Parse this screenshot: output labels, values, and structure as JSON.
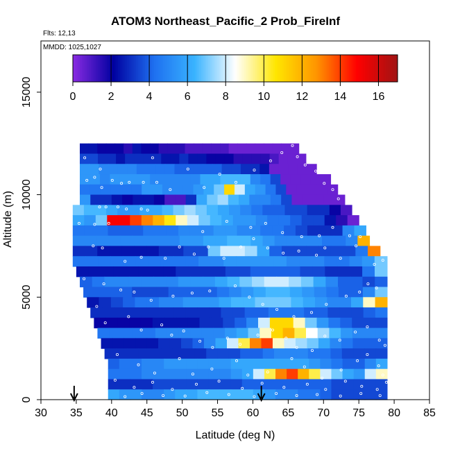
{
  "chart_data": {
    "type": "heatmap",
    "title": "ATOM3 Northeast_Pacific_2 Prob_FireInf",
    "subtitle_flights": "Flts: 12,13",
    "subtitle_dates": "MMDD: 1025,1027",
    "xlabel": "Latitude (deg N)",
    "ylabel": "Altitude (m)",
    "xlim": [
      30,
      85
    ],
    "ylim": [
      0,
      17500
    ],
    "x_ticks": [
      "30",
      "35",
      "40",
      "45",
      "50",
      "55",
      "60",
      "65",
      "70",
      "75",
      "80",
      "85"
    ],
    "y_ticks": [
      "0",
      "5000",
      "10000",
      "15000"
    ],
    "colorbar": {
      "range": [
        0,
        17
      ],
      "tick_labels": [
        "0",
        "2",
        "4",
        "6",
        "8",
        "10",
        "12",
        "14",
        "16"
      ],
      "colors": [
        "#8a2be2",
        "#0000a0",
        "#1e6ff0",
        "#39b3ff",
        "#ffffff",
        "#ffe600",
        "#ff9500",
        "#ff0000",
        "#a01414"
      ]
    },
    "markers": [
      {
        "x": 34.7,
        "symbol": "down-arrow"
      },
      {
        "x": 61.2,
        "symbol": "down-arrow"
      }
    ],
    "rows": [
      {
        "alt": 12250,
        "x0": 35.5,
        "x1": 66.5,
        "v": [
          2.5,
          2.5,
          2,
          2,
          2,
          1.5,
          2.5,
          2,
          2,
          1.5,
          1.5,
          1.5,
          1,
          1,
          1,
          1,
          1,
          0.5,
          0.5,
          0.5,
          0.5,
          0.5,
          0.5,
          0.5,
          0.5
        ]
      },
      {
        "alt": 11750,
        "x0": 35.5,
        "x1": 67.5,
        "v": [
          3.5,
          3.5,
          3,
          3,
          2.5,
          3,
          3,
          3,
          3,
          2.5,
          2.5,
          3,
          2.5,
          2.5,
          2,
          2,
          2,
          1.5,
          1.5,
          1.5,
          1.5,
          1,
          0.5,
          0.5,
          0.5
        ]
      },
      {
        "alt": 11250,
        "x0": 35.5,
        "x1": 69.0,
        "v": [
          5.5,
          5.5,
          5,
          5,
          5,
          5,
          4.5,
          4.5,
          4.5,
          4.5,
          4,
          4,
          4,
          4,
          4,
          3.5,
          3.5,
          3,
          3,
          2.5,
          0.5,
          0.5,
          0.5,
          0.5,
          0.5
        ]
      },
      {
        "alt": 10750,
        "x0": 35.5,
        "x1": 71.0,
        "v": [
          5.5,
          5.5,
          5,
          5.5,
          5.5,
          5.5,
          5.5,
          5,
          5,
          5,
          5,
          5,
          6,
          6,
          6.5,
          6.5,
          6.5,
          5,
          4.5,
          3.5,
          0.5,
          0.5,
          0.5,
          0.5,
          0.5
        ]
      },
      {
        "alt": 10250,
        "x0": 35.5,
        "x1": 72.0,
        "v": [
          4.5,
          4.5,
          4.5,
          4.5,
          4.5,
          4.5,
          5.5,
          5.5,
          5,
          5,
          5,
          5.5,
          6,
          7,
          11,
          8,
          6,
          5.5,
          4.5,
          3.5,
          0.5,
          0.5,
          0.5,
          0.5,
          0.5
        ]
      },
      {
        "alt": 9750,
        "x0": 35.5,
        "x1": 73.0,
        "v": [
          5.5,
          3,
          3,
          2.5,
          2,
          2.5,
          2.5,
          2,
          1,
          1,
          3,
          6,
          7,
          7.5,
          6.5,
          6,
          5,
          5,
          4.5,
          3.5,
          0.5,
          0.5,
          0.5,
          0.5,
          0.5
        ]
      },
      {
        "alt": 9250,
        "x0": 34.5,
        "x1": 74.0,
        "v": [
          7,
          6.5,
          6.5,
          6,
          5.5,
          5.5,
          6,
          6,
          6.5,
          7,
          7.5,
          7,
          6.5,
          6,
          5.5,
          5,
          4.5,
          4,
          4,
          3.5,
          3.5,
          3,
          3,
          2,
          1
        ]
      },
      {
        "alt": 8750,
        "x0": 34.5,
        "x1": 75.0,
        "v": [
          6,
          5.5,
          7,
          15,
          15,
          14,
          13,
          12,
          10.5,
          9,
          8,
          7,
          6.5,
          6,
          5.5,
          5.5,
          5,
          4.5,
          4.5,
          4,
          3.5,
          3.5,
          2.5,
          1.5,
          0.5
        ]
      },
      {
        "alt": 8250,
        "x0": 34.5,
        "x1": 76.0,
        "v": [
          4.5,
          4.5,
          4.5,
          4,
          4,
          4,
          4.5,
          4.5,
          4.5,
          5,
          5,
          5,
          5.5,
          5.5,
          5,
          5,
          4.5,
          4.5,
          4,
          3.5,
          3,
          3,
          3,
          5,
          6
        ]
      },
      {
        "alt": 7750,
        "x0": 34.5,
        "x1": 76.5,
        "v": [
          5,
          5,
          5,
          5,
          5,
          5,
          5,
          5,
          5,
          5.5,
          5.5,
          6,
          6,
          6.5,
          6.5,
          6,
          5.5,
          5,
          5,
          5,
          5,
          4.5,
          4.5,
          5,
          12
        ]
      },
      {
        "alt": 7250,
        "x0": 34.5,
        "x1": 78.0,
        "v": [
          3,
          3,
          2.5,
          2.5,
          2.5,
          2.5,
          2.5,
          3,
          3,
          3.5,
          3.5,
          7,
          8,
          8,
          7.5,
          6,
          4,
          3.5,
          3.5,
          3.5,
          3.5,
          3.5,
          3.5,
          4.5,
          13
        ]
      },
      {
        "alt": 6750,
        "x0": 34.5,
        "x1": 79.0,
        "v": [
          4.5,
          4.5,
          4.5,
          4.5,
          4.5,
          4.5,
          4.5,
          4.5,
          4.5,
          4.5,
          5,
          5,
          5.5,
          5.5,
          5.5,
          5.5,
          5.5,
          5,
          5,
          5,
          4.5,
          4.5,
          5,
          5.5,
          7
        ]
      },
      {
        "alt": 6250,
        "x0": 35.0,
        "x1": 79.0,
        "v": [
          2.5,
          2.5,
          2.5,
          2.5,
          2.5,
          2.5,
          2.5,
          2.5,
          3,
          3,
          3,
          3,
          3.5,
          3.5,
          4,
          4,
          4,
          4,
          3.5,
          3.5,
          3,
          3,
          3,
          4.5,
          7
        ]
      },
      {
        "alt": 5750,
        "x0": 35.5,
        "x1": 79.0,
        "v": [
          4,
          4.5,
          5,
          5,
          5,
          5,
          5,
          5,
          5.5,
          5.5,
          5.5,
          6,
          6.5,
          7,
          7.5,
          8,
          8,
          7.5,
          7,
          6,
          5,
          4,
          4,
          3.5,
          4
        ]
      },
      {
        "alt": 5250,
        "x0": 36.0,
        "x1": 79.0,
        "v": [
          4,
          4,
          4,
          4,
          3.5,
          3.5,
          3.5,
          4,
          4,
          4,
          4,
          4.5,
          5,
          5.5,
          6,
          6.5,
          6.5,
          6,
          5.5,
          5,
          4.5,
          4,
          4,
          5,
          7
        ]
      },
      {
        "alt": 4750,
        "x0": 36.5,
        "x1": 79.0,
        "v": [
          2.5,
          3,
          3.5,
          4,
          4.5,
          4.5,
          5,
          5,
          5.5,
          5.5,
          5.5,
          6,
          6.5,
          6.5,
          7,
          7,
          7,
          6.5,
          6,
          5.5,
          5,
          5,
          6,
          9,
          12
        ]
      },
      {
        "alt": 4250,
        "x0": 37.0,
        "x1": 79.0,
        "v": [
          3,
          3,
          3,
          3,
          3,
          3,
          3,
          3,
          3,
          3,
          3,
          3.5,
          3.5,
          4,
          4,
          4.5,
          4.5,
          4.5,
          4,
          4,
          3.5,
          3.5,
          3.5,
          4,
          4.5
        ]
      },
      {
        "alt": 3750,
        "x0": 37.5,
        "x1": 79.0,
        "v": [
          2,
          2,
          2,
          2,
          2,
          2.5,
          2.5,
          2.5,
          2.5,
          3,
          3,
          3.5,
          4,
          5,
          8,
          11,
          11,
          9,
          7,
          5.5,
          4.5,
          4,
          3.5,
          3.5,
          3.5
        ]
      },
      {
        "alt": 3250,
        "x0": 38.0,
        "x1": 79.0,
        "v": [
          4.5,
          4.5,
          4.5,
          4.5,
          4.5,
          5,
          5,
          5,
          5,
          5,
          5,
          5.5,
          6,
          7,
          9,
          11,
          12,
          10,
          8.5,
          7.5,
          6.5,
          5.5,
          5,
          5,
          5
        ]
      },
      {
        "alt": 2750,
        "x0": 38.5,
        "x1": 79.0,
        "v": [
          2.5,
          2.5,
          2.5,
          2.5,
          2.5,
          3,
          3,
          3.5,
          4,
          5,
          6,
          8,
          10,
          13,
          14,
          9,
          8,
          7.5,
          7,
          6,
          5,
          4.5,
          4,
          4,
          4
        ]
      },
      {
        "alt": 2250,
        "x0": 39.0,
        "x1": 79.0,
        "v": [
          3,
          3,
          3,
          3,
          3,
          3,
          3,
          3,
          3,
          3.5,
          3.5,
          3.5,
          4,
          4,
          4.5,
          5,
          5,
          5,
          4.5,
          4.5,
          4,
          3.5,
          3.5,
          3.5,
          3.5
        ]
      },
      {
        "alt": 1750,
        "x0": 39.5,
        "x1": 79.0,
        "v": [
          4,
          4.5,
          4.5,
          5,
          5,
          5.5,
          5.5,
          5.5,
          5.5,
          5.5,
          5.5,
          6,
          6,
          6,
          6,
          6,
          6,
          6,
          5.5,
          5,
          4.5,
          4,
          4,
          5,
          6
        ]
      },
      {
        "alt": 1250,
        "x0": 39.5,
        "x1": 79.0,
        "v": [
          4.5,
          4.5,
          4.5,
          5,
          5,
          5,
          5,
          5,
          5,
          5,
          5,
          5.5,
          6,
          8,
          10,
          13,
          14,
          12,
          10,
          8,
          7,
          6,
          5.5,
          8,
          9
        ]
      },
      {
        "alt": 750,
        "x0": 39.5,
        "x1": 79.0,
        "v": [
          3,
          3,
          3,
          3,
          3.5,
          3.5,
          3.5,
          3.5,
          3.5,
          3.5,
          3.5,
          3.5,
          4,
          4,
          4,
          4,
          4,
          4,
          4,
          4,
          3.5,
          3.5,
          3.5,
          3.5,
          3.5
        ]
      },
      {
        "alt": 250,
        "x0": 39.5,
        "x1": 79.0,
        "v": [
          6,
          5.5,
          5.5,
          5,
          5,
          5.5,
          6,
          6,
          6.5,
          6.5,
          6.5,
          6.5,
          6.5,
          6,
          5.5,
          5,
          5,
          4.5,
          4.5,
          4,
          3.5,
          3.5,
          3.5,
          3.5,
          3.5
        ]
      }
    ],
    "sample_points": [
      [
        36.2,
        11800
      ],
      [
        36.5,
        10700
      ],
      [
        37.6,
        10850
      ],
      [
        38.4,
        11250
      ],
      [
        38.6,
        10350
      ],
      [
        40.1,
        10700
      ],
      [
        41.4,
        10550
      ],
      [
        42.5,
        10600
      ],
      [
        44.5,
        10600
      ],
      [
        45.8,
        11800
      ],
      [
        46.4,
        10600
      ],
      [
        48.3,
        10250
      ],
      [
        50.8,
        11250
      ],
      [
        53.1,
        10350
      ],
      [
        55.3,
        11000
      ],
      [
        57.6,
        10600
      ],
      [
        60.2,
        11200
      ],
      [
        62.5,
        11650
      ],
      [
        64.1,
        12050
      ],
      [
        65.6,
        12400
      ],
      [
        66.3,
        11850
      ],
      [
        67.4,
        11450
      ],
      [
        68.9,
        11150
      ],
      [
        70.1,
        10550
      ],
      [
        71.3,
        10250
      ],
      [
        72.1,
        9800
      ],
      [
        38.3,
        9400
      ],
      [
        39.2,
        9400
      ],
      [
        40.9,
        9400
      ],
      [
        42.1,
        9300
      ],
      [
        44.2,
        9300
      ],
      [
        45.1,
        9250
      ],
      [
        35.4,
        8600
      ],
      [
        37.6,
        8550
      ],
      [
        39.6,
        8600
      ],
      [
        56.3,
        8700
      ],
      [
        59.7,
        8400
      ],
      [
        61.8,
        8600
      ],
      [
        64.2,
        8150
      ],
      [
        66.9,
        7950
      ],
      [
        69.4,
        8000
      ],
      [
        71.3,
        8400
      ],
      [
        73.7,
        8000
      ],
      [
        75.2,
        7950
      ],
      [
        76.9,
        7650
      ],
      [
        37.4,
        7500
      ],
      [
        38.7,
        7400
      ],
      [
        41.9,
        6750
      ],
      [
        44.2,
        6950
      ],
      [
        47.6,
        6900
      ],
      [
        49.6,
        7450
      ],
      [
        51.7,
        7100
      ],
      [
        52.9,
        8200
      ],
      [
        53.7,
        7450
      ],
      [
        55.9,
        6900
      ],
      [
        58.3,
        7450
      ],
      [
        60.1,
        7850
      ],
      [
        62.1,
        7400
      ],
      [
        64.3,
        7150
      ],
      [
        66.5,
        7250
      ],
      [
        69.0,
        7050
      ],
      [
        70.2,
        7400
      ],
      [
        72.4,
        6900
      ],
      [
        74.6,
        7500
      ],
      [
        77.2,
        6600
      ],
      [
        78.4,
        6800
      ],
      [
        36.1,
        5900
      ],
      [
        38.9,
        5650
      ],
      [
        41.3,
        5350
      ],
      [
        43.2,
        5250
      ],
      [
        45.6,
        4850
      ],
      [
        48.7,
        5050
      ],
      [
        51.4,
        5200
      ],
      [
        53.9,
        5300
      ],
      [
        57.5,
        5550
      ],
      [
        59.5,
        5000
      ],
      [
        61.4,
        4650
      ],
      [
        63.4,
        4400
      ],
      [
        65.8,
        4050
      ],
      [
        68.3,
        4250
      ],
      [
        70.4,
        4650
      ],
      [
        73.2,
        5050
      ],
      [
        75.1,
        5250
      ],
      [
        76.3,
        5650
      ],
      [
        77.5,
        5450
      ],
      [
        37.9,
        4550
      ],
      [
        39.1,
        3750
      ],
      [
        42.4,
        4050
      ],
      [
        44.2,
        3400
      ],
      [
        47.1,
        3650
      ],
      [
        48.5,
        3150
      ],
      [
        50.2,
        3350
      ],
      [
        52.5,
        2850
      ],
      [
        54.3,
        2550
      ],
      [
        56.4,
        3000
      ],
      [
        58.2,
        2700
      ],
      [
        60.7,
        3150
      ],
      [
        62.8,
        3400
      ],
      [
        64.7,
        3000
      ],
      [
        66.2,
        2550
      ],
      [
        68.4,
        2400
      ],
      [
        70.2,
        3100
      ],
      [
        72.3,
        2900
      ],
      [
        74.5,
        3300
      ],
      [
        76.2,
        3550
      ],
      [
        77.9,
        2900
      ],
      [
        78.7,
        2650
      ],
      [
        40.8,
        2200
      ],
      [
        43.8,
        1700
      ],
      [
        46.1,
        1300
      ],
      [
        49.6,
        2000
      ],
      [
        51.5,
        1250
      ],
      [
        54.2,
        1500
      ],
      [
        57.7,
        1900
      ],
      [
        59.3,
        1200
      ],
      [
        62.1,
        1350
      ],
      [
        65.5,
        2000
      ],
      [
        67.3,
        1600
      ],
      [
        69.8,
        1050
      ],
      [
        72.5,
        1450
      ],
      [
        74.8,
        1900
      ],
      [
        76.2,
        2200
      ],
      [
        77.8,
        1650
      ],
      [
        78.4,
        1200
      ],
      [
        40.5,
        950
      ],
      [
        43.2,
        600
      ],
      [
        45.8,
        850
      ],
      [
        48.6,
        500
      ],
      [
        52.0,
        750
      ],
      [
        55.2,
        900
      ],
      [
        58.5,
        550
      ],
      [
        61.3,
        800
      ],
      [
        64.4,
        600
      ],
      [
        67.7,
        750
      ],
      [
        70.3,
        500
      ],
      [
        73.1,
        900
      ],
      [
        75.4,
        650
      ],
      [
        77.6,
        500
      ],
      [
        78.9,
        850
      ],
      [
        41.9,
        150
      ],
      [
        44.3,
        300
      ],
      [
        47.3,
        200
      ],
      [
        50.4,
        180
      ],
      [
        53.5,
        350
      ],
      [
        56.6,
        250
      ],
      [
        60.2,
        150
      ],
      [
        63.3,
        300
      ],
      [
        66.2,
        200
      ],
      [
        69.1,
        250
      ],
      [
        72.4,
        180
      ],
      [
        75.3,
        300
      ],
      [
        78.0,
        200
      ]
    ]
  }
}
